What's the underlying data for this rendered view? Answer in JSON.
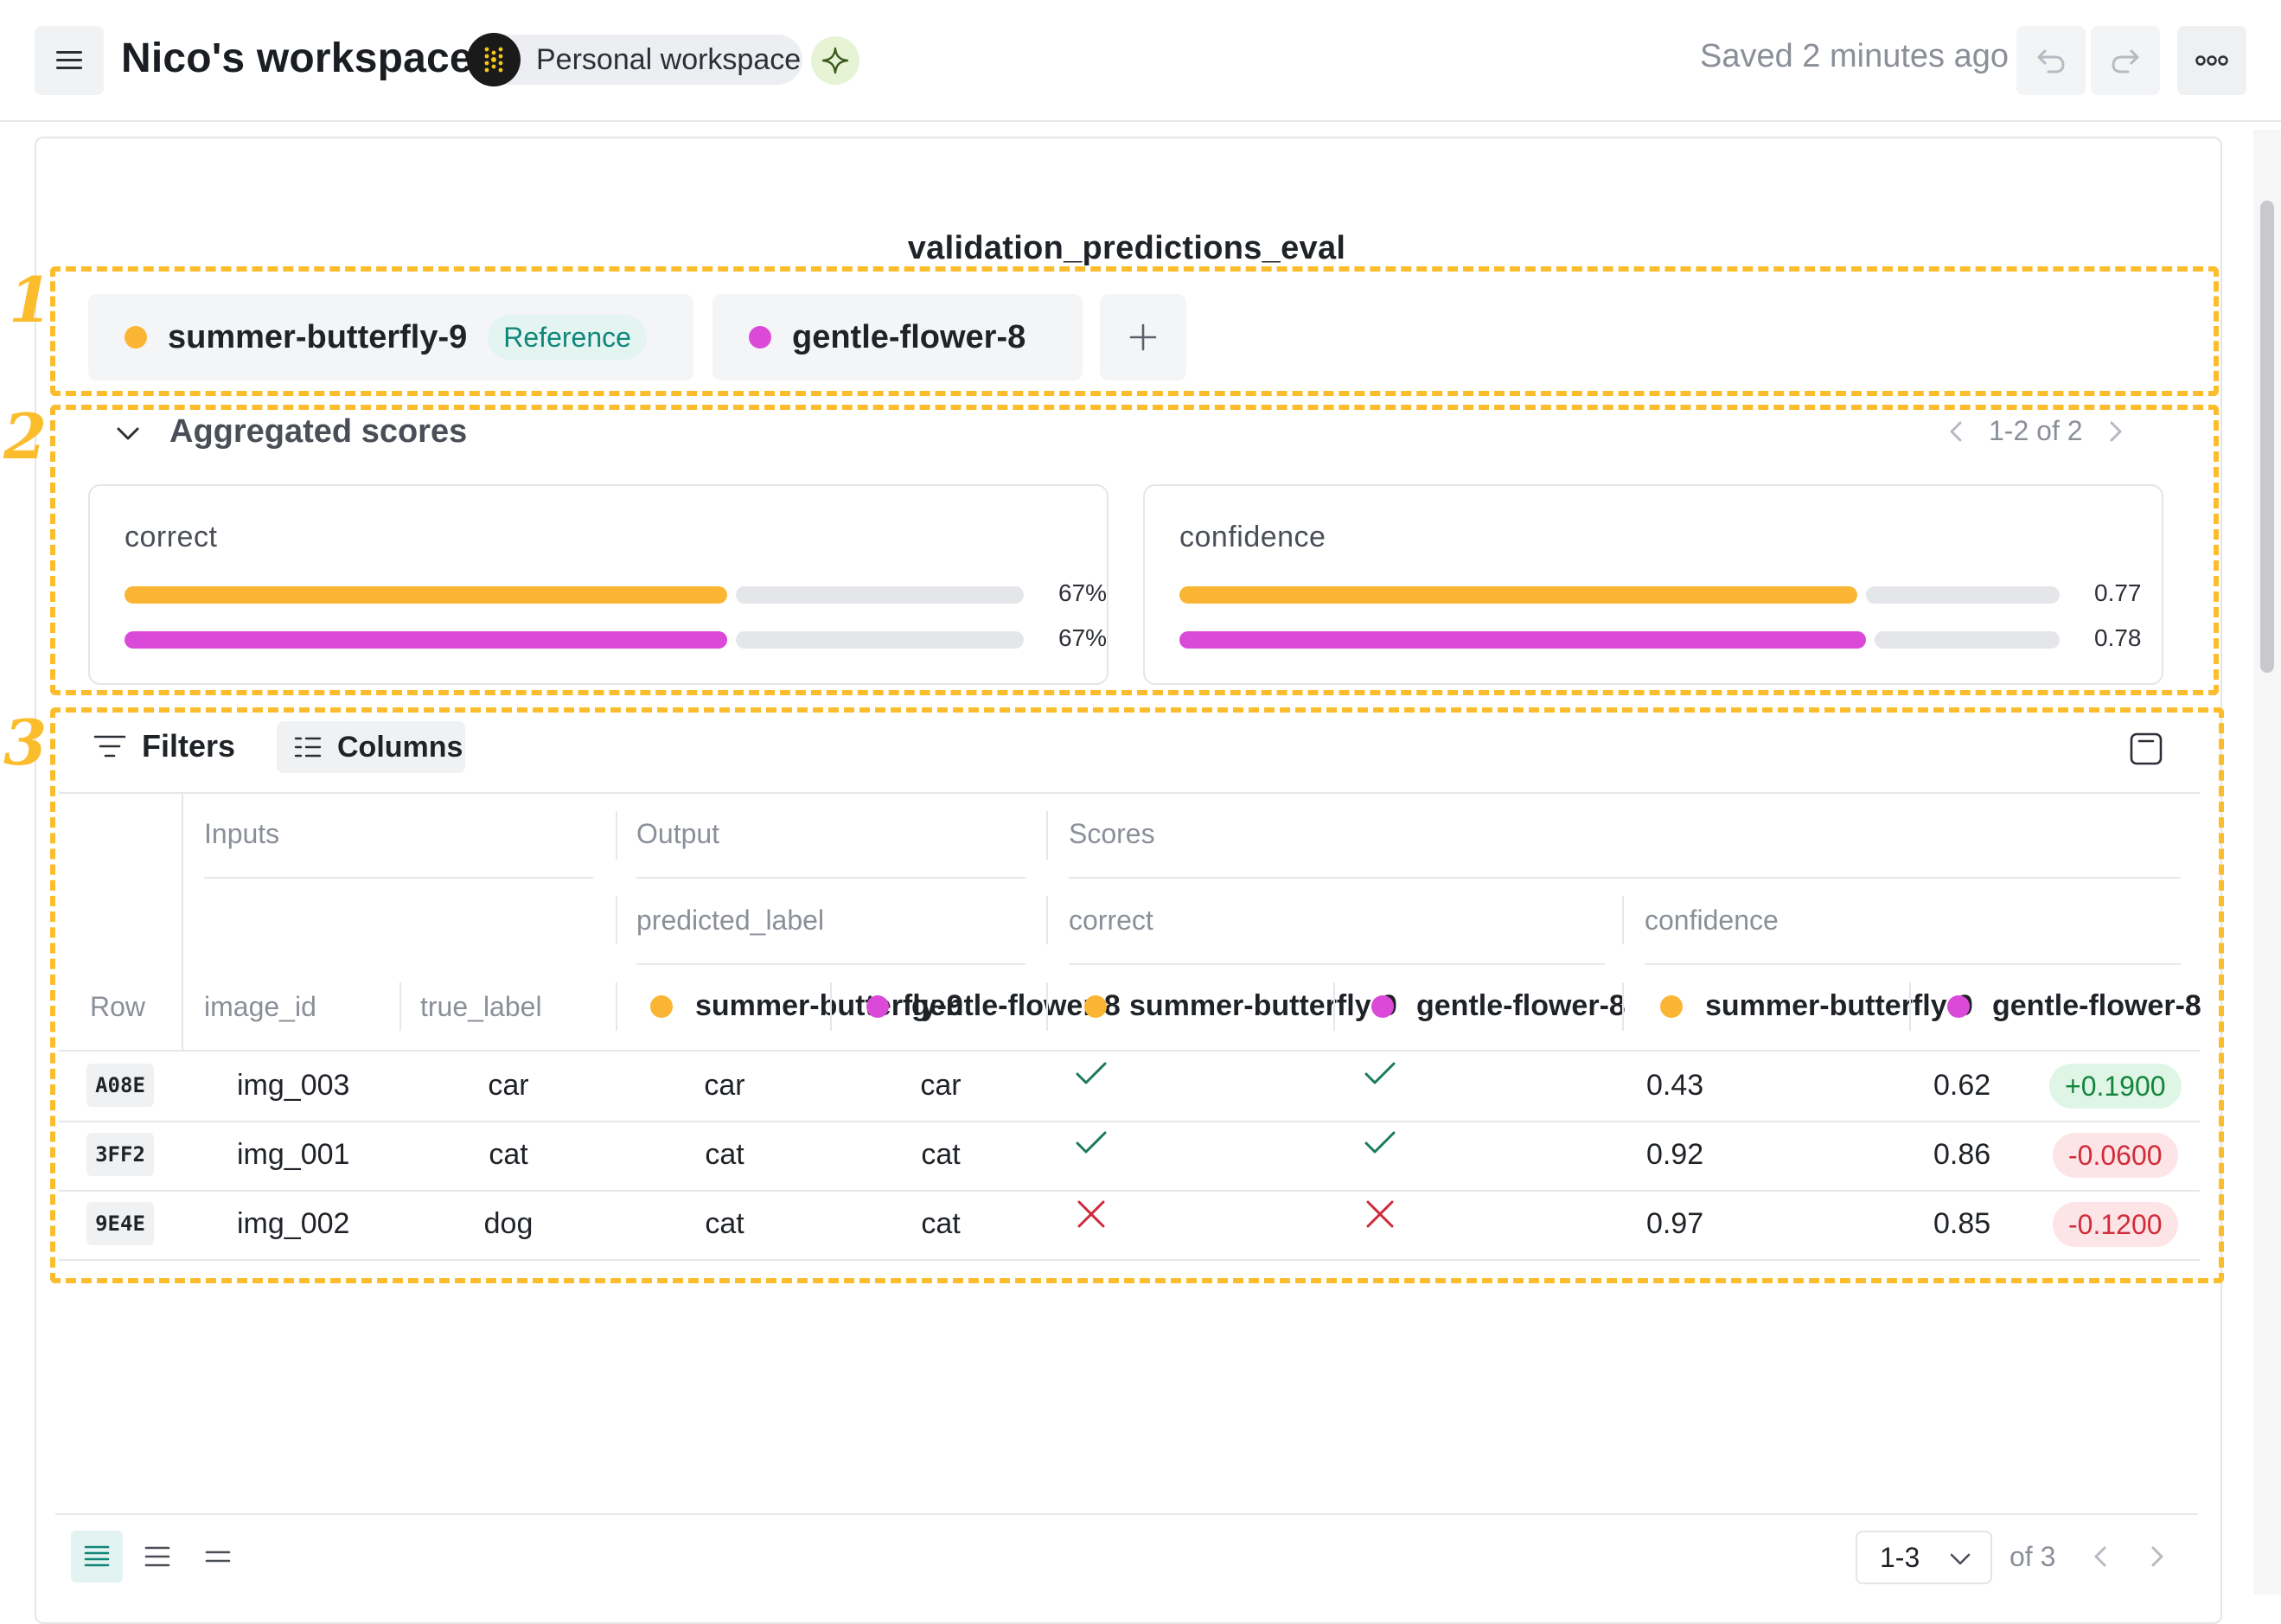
{
  "header": {
    "workspace_title": "Nico's workspace",
    "workspace_chip": "Personal workspace",
    "saved_status": "Saved 2 minutes ago",
    "icons": [
      "menu-icon",
      "workspace-logo-icon",
      "sparkle-icon",
      "undo-icon",
      "redo-icon",
      "more-icon"
    ]
  },
  "eval_title": "validation_predictions_eval",
  "annotations": [
    "1",
    "2",
    "3"
  ],
  "runs": [
    {
      "name": "summer-butterfly-9",
      "color": "#fbb535",
      "badge": "Reference"
    },
    {
      "name": "gentle-flower-8",
      "color": "#db49d8",
      "badge": ""
    }
  ],
  "aggregated": {
    "title": "Aggregated scores",
    "pager": "1-2 of 2",
    "cards": [
      {
        "label": "correct",
        "bars": [
          {
            "run": "summer-butterfly-9",
            "fraction": 0.67,
            "value": "67%"
          },
          {
            "run": "gentle-flower-8",
            "fraction": 0.67,
            "value": "67%"
          }
        ]
      },
      {
        "label": "confidence",
        "bars": [
          {
            "run": "summer-butterfly-9",
            "fraction": 0.77,
            "value": "0.77"
          },
          {
            "run": "gentle-flower-8",
            "fraction": 0.78,
            "value": "0.78"
          }
        ]
      }
    ]
  },
  "table": {
    "filters_label": "Filters",
    "columns_label": "Columns",
    "groups": {
      "inputs": "Inputs",
      "output": "Output",
      "scores": "Scores"
    },
    "subgroups": {
      "predicted_label": "predicted_label",
      "correct": "correct",
      "confidence": "confidence"
    },
    "columns": {
      "row": "Row",
      "image_id": "image_id",
      "true_label": "true_label",
      "pred_a": "summer-butterfly-9",
      "pred_b": "gentle-flower-8",
      "correct_a": "summer-butterfly-9",
      "correct_b": "gentle-flower-8",
      "conf_a": "summer-butterfly-9",
      "conf_b": "gentle-flower-8"
    },
    "rows": [
      {
        "id": "A08E",
        "image_id": "img_003",
        "true_label": "car",
        "pred_a": "car",
        "pred_b": "car",
        "correct_a": true,
        "correct_b": true,
        "conf_a": "0.43",
        "conf_b": "0.62",
        "diff": "+0.1900",
        "diff_sign": "pos"
      },
      {
        "id": "3FF2",
        "image_id": "img_001",
        "true_label": "cat",
        "pred_a": "cat",
        "pred_b": "cat",
        "correct_a": true,
        "correct_b": true,
        "conf_a": "0.92",
        "conf_b": "0.86",
        "diff": "-0.0600",
        "diff_sign": "neg"
      },
      {
        "id": "9E4E",
        "image_id": "img_002",
        "true_label": "dog",
        "pred_a": "cat",
        "pred_b": "cat",
        "correct_a": false,
        "correct_b": false,
        "conf_a": "0.97",
        "conf_b": "0.85",
        "diff": "-0.1200",
        "diff_sign": "neg"
      }
    ]
  },
  "footer": {
    "page_select": "1-3",
    "of_total": "of 3",
    "density_options": [
      "density-compact-icon",
      "density-normal-icon",
      "density-comfortable-icon"
    ]
  }
}
